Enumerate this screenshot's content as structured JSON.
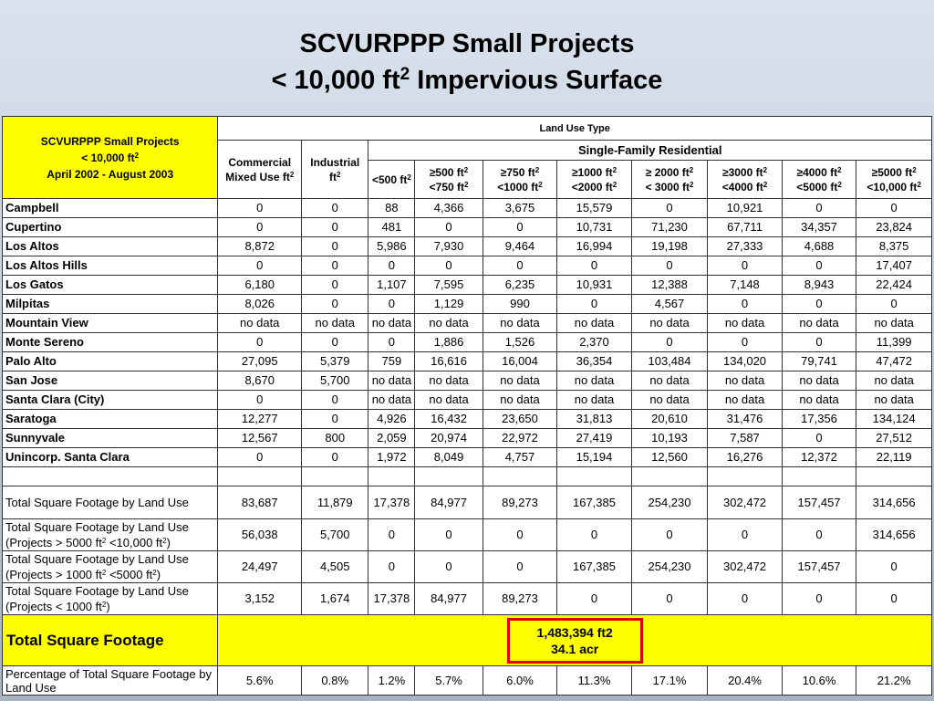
{
  "title": {
    "line1": "SCVURPPP Small Projects",
    "line2_prefix": "< 10,000 ft",
    "line2_sup": "2",
    "line2_suffix": " Impervious Surface"
  },
  "corner": {
    "line1": "SCVURPPP Small Projects",
    "line2": "< 10,000 ft",
    "line2_sup": "2",
    "line3": "April 2002 - August 2003"
  },
  "headers": {
    "land_use_type": "Land Use Type",
    "single_family": "Single-Family Residential",
    "commercial": "Commercial Mixed Use ft",
    "industrial": "Industrial ft",
    "c1": "<500 ft",
    "c2a": "≥500 ft",
    "c2b": "<750 ft",
    "c3a": "≥750 ft",
    "c3b": "<1000 ft",
    "c4a": "≥1000 ft",
    "c4b": "<2000 ft",
    "c5a": "≥ 2000 ft",
    "c5b": "< 3000 ft",
    "c6a": "≥3000 ft",
    "c6b": "<4000 ft",
    "c7a": "≥4000 ft",
    "c7b": "<5000 ft",
    "c8a": "≥5000 ft",
    "c8b": "<10,000 ft",
    "sup": "2"
  },
  "rows": [
    {
      "city": "Campbell",
      "v": [
        "0",
        "0",
        "88",
        "4,366",
        "3,675",
        "15,579",
        "0",
        "10,921",
        "0",
        "0"
      ]
    },
    {
      "city": "Cupertino",
      "v": [
        "0",
        "0",
        "481",
        "0",
        "0",
        "10,731",
        "71,230",
        "67,711",
        "34,357",
        "23,824"
      ]
    },
    {
      "city": "Los Altos",
      "v": [
        "8,872",
        "0",
        "5,986",
        "7,930",
        "9,464",
        "16,994",
        "19,198",
        "27,333",
        "4,688",
        "8,375"
      ]
    },
    {
      "city": "Los Altos Hills",
      "v": [
        "0",
        "0",
        "0",
        "0",
        "0",
        "0",
        "0",
        "0",
        "0",
        "17,407"
      ]
    },
    {
      "city": "Los Gatos",
      "v": [
        "6,180",
        "0",
        "1,107",
        "7,595",
        "6,235",
        "10,931",
        "12,388",
        "7,148",
        "8,943",
        "22,424"
      ]
    },
    {
      "city": "Milpitas",
      "v": [
        "8,026",
        "0",
        "0",
        "1,129",
        "990",
        "0",
        "4,567",
        "0",
        "0",
        "0"
      ]
    },
    {
      "city": "Mountain View",
      "v": [
        "no data",
        "no data",
        "no data",
        "no data",
        "no data",
        "no data",
        "no data",
        "no data",
        "no data",
        "no data"
      ]
    },
    {
      "city": "Monte Sereno",
      "v": [
        "0",
        "0",
        "0",
        "1,886",
        "1,526",
        "2,370",
        "0",
        "0",
        "0",
        "11,399"
      ]
    },
    {
      "city": "Palo Alto",
      "v": [
        "27,095",
        "5,379",
        "759",
        "16,616",
        "16,004",
        "36,354",
        "103,484",
        "134,020",
        "79,741",
        "47,472"
      ]
    },
    {
      "city": "San Jose",
      "v": [
        "8,670",
        "5,700",
        "no data",
        "no data",
        "no data",
        "no data",
        "no data",
        "no data",
        "no data",
        "no data"
      ]
    },
    {
      "city": "Santa Clara (City)",
      "v": [
        "0",
        "0",
        "no data",
        "no data",
        "no data",
        "no data",
        "no data",
        "no data",
        "no data",
        "no data"
      ]
    },
    {
      "city": "Saratoga",
      "v": [
        "12,277",
        "0",
        "4,926",
        "16,432",
        "23,650",
        "31,813",
        "20,610",
        "31,476",
        "17,356",
        "134,124"
      ]
    },
    {
      "city": "Sunnyvale",
      "v": [
        "12,567",
        "800",
        "2,059",
        "20,974",
        "22,972",
        "27,419",
        "10,193",
        "7,587",
        "0",
        "27,512"
      ]
    },
    {
      "city": "Unincorp. Santa Clara",
      "v": [
        "0",
        "0",
        "1,972",
        "8,049",
        "4,757",
        "15,194",
        "12,560",
        "16,276",
        "12,372",
        "22,119"
      ]
    }
  ],
  "totals": {
    "by_land_use": {
      "label": "Total Square Footage by Land Use",
      "v": [
        "83,687",
        "11,879",
        "17,378",
        "84,977",
        "89,273",
        "167,385",
        "254,230",
        "302,472",
        "157,457",
        "314,656"
      ]
    },
    "gt5000": {
      "label1": "Total Square Footage by Land Use",
      "label2a": "(Projects > 5000 ft",
      "label2b": " <10,000 ft",
      "label2c": ")",
      "v": [
        "56,038",
        "5,700",
        "0",
        "0",
        "0",
        "0",
        "0",
        "0",
        "0",
        "314,656"
      ]
    },
    "gt1000": {
      "label1": "Total Square Footage by Land Use",
      "label2a": "(Projects > 1000 ft",
      "label2b": " <5000 ft",
      "label2c": ")",
      "v": [
        "24,497",
        "4,505",
        "0",
        "0",
        "0",
        "167,385",
        "254,230",
        "302,472",
        "157,457",
        "0"
      ]
    },
    "lt1000": {
      "label1": "Total Square Footage by Land Use",
      "label2a": "(Projects < 1000 ft",
      "label2c": ")",
      "v": [
        "3,152",
        "1,674",
        "17,378",
        "84,977",
        "89,273",
        "0",
        "0",
        "0",
        "0",
        "0"
      ]
    },
    "grand": {
      "label": "Total Square Footage",
      "ft2": "1,483,394 ft2",
      "acres": "34.1 acr"
    },
    "pct": {
      "label": "Percentage of Total Square Footage by Land Use",
      "v": [
        "5.6%",
        "0.8%",
        "1.2%",
        "5.7%",
        "6.0%",
        "11.3%",
        "17.1%",
        "20.4%",
        "10.6%",
        "21.2%"
      ]
    }
  }
}
